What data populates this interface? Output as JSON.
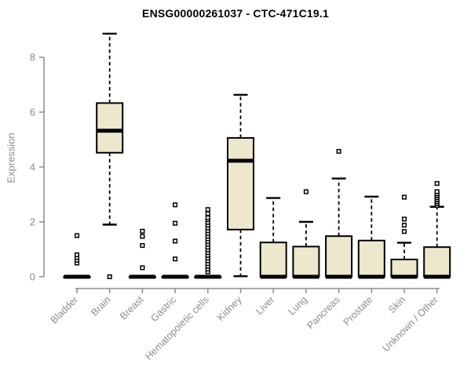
{
  "chart_data": {
    "type": "boxplot",
    "title": "ENSG00000261037 - CTC-471C19.1",
    "ylabel": "Expression",
    "xlabel": "",
    "ylim": [
      0,
      9
    ],
    "yticks": [
      0,
      2,
      4,
      6,
      8
    ],
    "grid": false,
    "legend_position": "none",
    "colors": {
      "box_fill": "#EDE7CD",
      "box_stroke": "#000000",
      "median": "#000000",
      "whisker": "#000000",
      "outlier": "#000000",
      "axis": "#8c8c8c",
      "tick_label": "#8c8c8c",
      "title": "#000000",
      "background": "#ffffff"
    },
    "categories": [
      "Bladder",
      "Brain",
      "Breast",
      "Gastric",
      "Hematopoietic cells",
      "Kidney",
      "Liver",
      "Lung",
      "Pancreas",
      "Prostate",
      "Skin",
      "Unknown / Other"
    ],
    "boxes": [
      {
        "category": "Bladder",
        "whisker_low": 0,
        "q1": 0,
        "median": 0,
        "q3": 0,
        "whisker_high": 0,
        "outliers": [
          0.5,
          0.6,
          0.7,
          0.8,
          1.5
        ]
      },
      {
        "category": "Brain",
        "whisker_low": 1.9,
        "q1": 4.52,
        "median": 5.32,
        "q3": 6.33,
        "whisker_high": 8.86,
        "outliers": [
          0
        ]
      },
      {
        "category": "Breast",
        "whisker_low": 0,
        "q1": 0,
        "median": 0,
        "q3": 0,
        "whisker_high": 0,
        "outliers": [
          0.33,
          1.14,
          1.47,
          1.66
        ]
      },
      {
        "category": "Gastric",
        "whisker_low": 0,
        "q1": 0,
        "median": 0,
        "q3": 0,
        "whisker_high": 0,
        "outliers": [
          0.65,
          1.3,
          1.95,
          2.62
        ]
      },
      {
        "category": "Hematopoietic cells",
        "whisker_low": 0,
        "q1": 0,
        "median": 0,
        "q3": 0,
        "whisker_high": 0,
        "outliers": [
          0.18,
          0.28,
          0.38,
          0.48,
          0.58,
          0.68,
          0.78,
          0.88,
          0.98,
          1.08,
          1.18,
          1.28,
          1.38,
          1.48,
          1.58,
          1.68,
          1.78,
          1.88,
          1.98,
          2.08,
          2.15,
          2.3,
          2.45
        ]
      },
      {
        "category": "Kidney",
        "whisker_low": 0.02,
        "q1": 1.72,
        "median": 4.23,
        "q3": 5.06,
        "whisker_high": 6.63,
        "outliers": []
      },
      {
        "category": "Liver",
        "whisker_low": 0,
        "q1": 0,
        "median": 0,
        "q3": 1.25,
        "whisker_high": 2.87,
        "outliers": []
      },
      {
        "category": "Lung",
        "whisker_low": 0,
        "q1": 0,
        "median": 0,
        "q3": 1.1,
        "whisker_high": 2.0,
        "outliers": [
          3.1
        ]
      },
      {
        "category": "Pancreas",
        "whisker_low": 0,
        "q1": 0,
        "median": 0,
        "q3": 1.48,
        "whisker_high": 3.58,
        "outliers": [
          4.57
        ]
      },
      {
        "category": "Prostate",
        "whisker_low": 0,
        "q1": 0,
        "median": 0,
        "q3": 1.32,
        "whisker_high": 2.92,
        "outliers": []
      },
      {
        "category": "Skin",
        "whisker_low": 0,
        "q1": 0,
        "median": 0,
        "q3": 0.63,
        "whisker_high": 1.24,
        "outliers": [
          1.65,
          1.88,
          2.1,
          2.9
        ]
      },
      {
        "category": "Unknown / Other",
        "whisker_low": 0,
        "q1": 0,
        "median": 0,
        "q3": 1.08,
        "whisker_high": 2.55,
        "outliers": [
          2.6,
          2.67,
          2.74,
          2.81,
          2.88,
          2.95,
          3.02,
          3.1,
          3.4
        ]
      }
    ]
  }
}
